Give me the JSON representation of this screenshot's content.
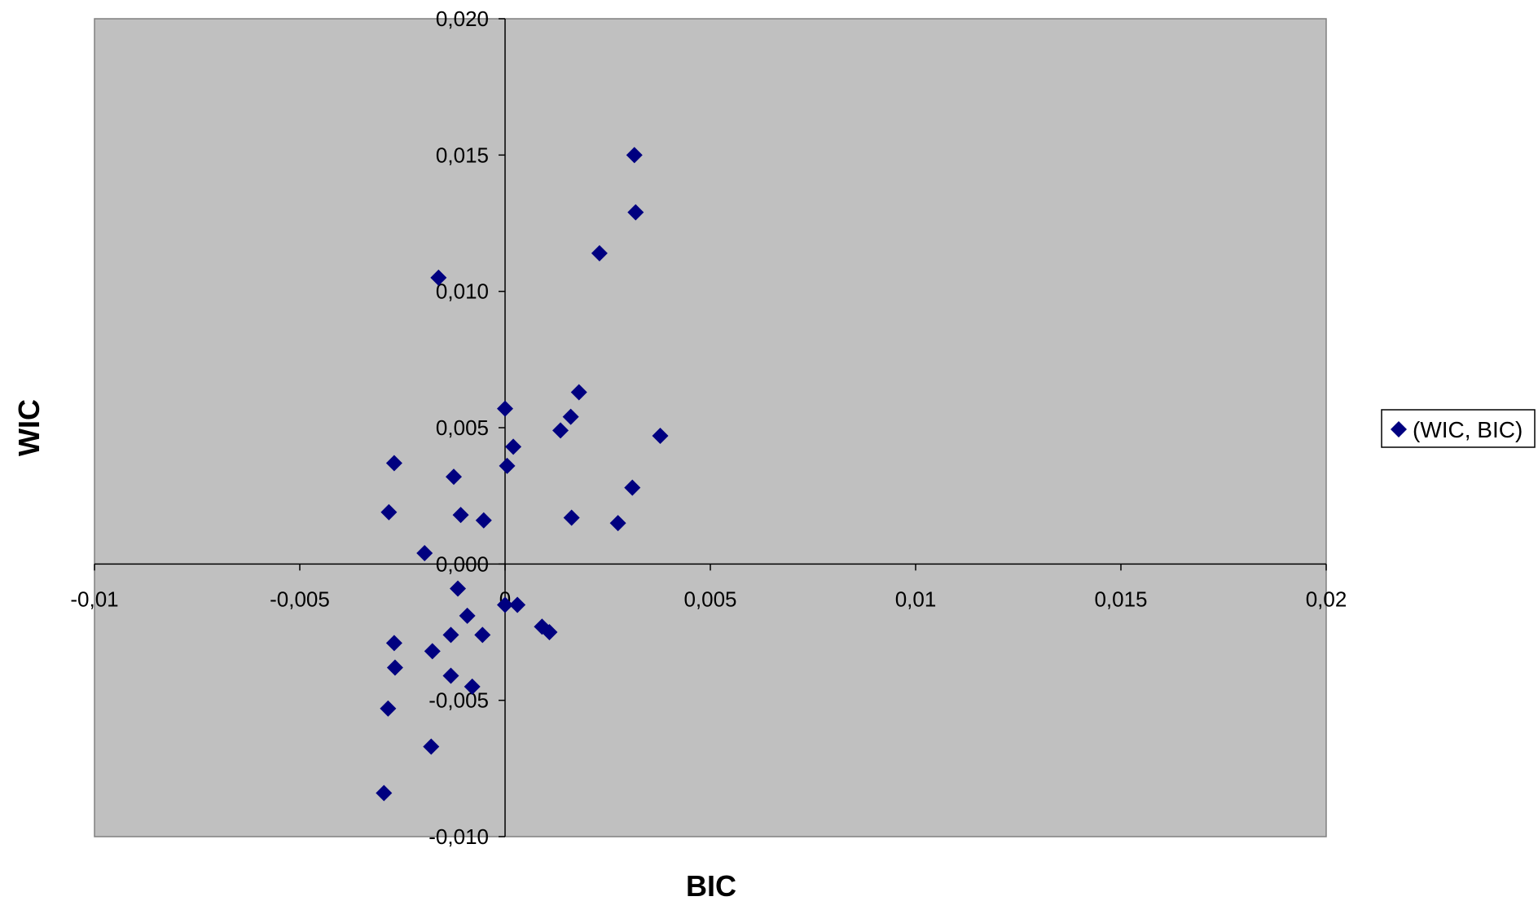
{
  "chart_data": {
    "type": "scatter",
    "title": "",
    "xlabel": "BIC",
    "ylabel": "WIC",
    "xlim": [
      -0.01,
      0.02
    ],
    "ylim": [
      -0.01,
      0.02
    ],
    "x_ticks": [
      "-0,01",
      "-0,005",
      "0",
      "0,005",
      "0,01",
      "0,015",
      "0,02"
    ],
    "y_ticks": [
      "-0,010",
      "-0,005",
      "0,000",
      "0,005",
      "0,010",
      "0,015",
      "0,020"
    ],
    "grid": false,
    "plot_background": "#c0c0c0",
    "marker_color": "#000080",
    "legend": {
      "position": "right",
      "label": "(WIC, BIC)"
    },
    "series": [
      {
        "name": "(WIC, BIC)",
        "points": [
          {
            "x": 0.00315,
            "y": 0.015
          },
          {
            "x": 0.00318,
            "y": 0.0129
          },
          {
            "x": 0.0023,
            "y": 0.0114
          },
          {
            "x": -0.00162,
            "y": 0.0105
          },
          {
            "x": 0.0018,
            "y": 0.0063
          },
          {
            "x": 0.0,
            "y": 0.0057
          },
          {
            "x": 0.0016,
            "y": 0.0054
          },
          {
            "x": 0.00135,
            "y": 0.0049
          },
          {
            "x": 0.00378,
            "y": 0.0047
          },
          {
            "x": 0.0002,
            "y": 0.0043
          },
          {
            "x": 5e-05,
            "y": 0.0036
          },
          {
            "x": -0.0027,
            "y": 0.0037
          },
          {
            "x": -0.00125,
            "y": 0.0032
          },
          {
            "x": 0.0031,
            "y": 0.0028
          },
          {
            "x": -0.00283,
            "y": 0.0019
          },
          {
            "x": -0.00108,
            "y": 0.0018
          },
          {
            "x": -0.00052,
            "y": 0.0016
          },
          {
            "x": 0.00162,
            "y": 0.0017
          },
          {
            "x": 0.00275,
            "y": 0.0015
          },
          {
            "x": -0.00196,
            "y": 0.0004
          },
          {
            "x": -0.00115,
            "y": -0.0009
          },
          {
            "x": 0.0,
            "y": -0.0015
          },
          {
            "x": 0.0003,
            "y": -0.0015
          },
          {
            "x": -0.00092,
            "y": -0.0019
          },
          {
            "x": 0.0009,
            "y": -0.0023
          },
          {
            "x": 0.00108,
            "y": -0.0025
          },
          {
            "x": -0.00132,
            "y": -0.0026
          },
          {
            "x": -0.00055,
            "y": -0.0026
          },
          {
            "x": -0.0027,
            "y": -0.0029
          },
          {
            "x": -0.00177,
            "y": -0.0032
          },
          {
            "x": -0.00268,
            "y": -0.0038
          },
          {
            "x": -0.00132,
            "y": -0.0041
          },
          {
            "x": -0.0008,
            "y": -0.0045
          },
          {
            "x": -0.00285,
            "y": -0.0053
          },
          {
            "x": -0.0018,
            "y": -0.0067
          },
          {
            "x": -0.00295,
            "y": -0.0084
          }
        ]
      }
    ]
  }
}
